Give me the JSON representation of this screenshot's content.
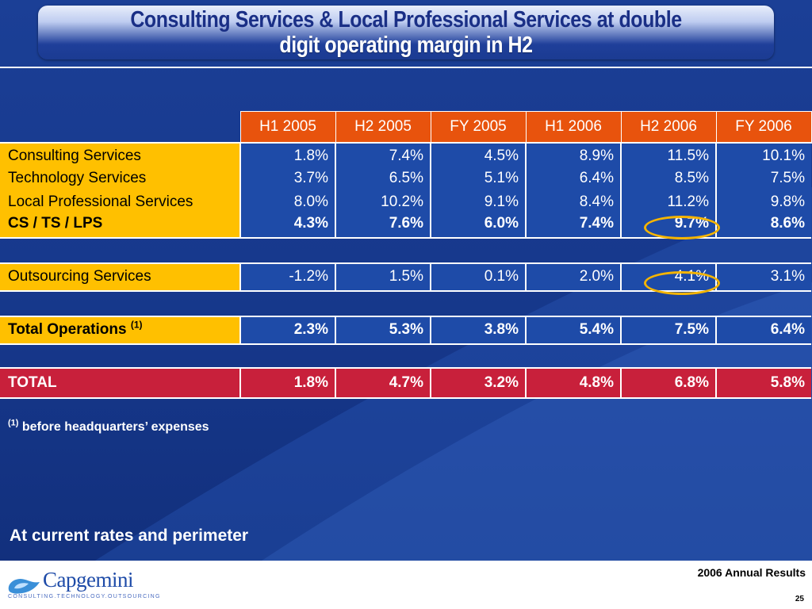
{
  "title": {
    "line1": "Consulting Services & Local Professional Services at double",
    "line2": "digit operating margin in H2"
  },
  "table": {
    "columns": [
      "H1 2005",
      "H2 2005",
      "FY 2005",
      "H1 2006",
      "H2 2006",
      "FY 2006"
    ],
    "blocks": [
      {
        "rows": [
          {
            "label": "Consulting Services",
            "values": [
              "1.8%",
              "7.4%",
              "4.5%",
              "8.9%",
              "11.5%",
              "10.1%"
            ]
          },
          {
            "label": "Technology Services",
            "values": [
              "3.7%",
              "6.5%",
              "5.1%",
              "6.4%",
              "8.5%",
              "7.5%"
            ]
          },
          {
            "label": "Local Professional Services",
            "values": [
              "8.0%",
              "10.2%",
              "9.1%",
              "8.4%",
              "11.2%",
              "9.8%"
            ]
          },
          {
            "label": "CS / TS / LPS",
            "values": [
              "4.3%",
              "7.6%",
              "6.0%",
              "7.4%",
              "9.7%",
              "8.6%"
            ]
          }
        ]
      },
      {
        "rows": [
          {
            "label": "Outsourcing Services",
            "values": [
              "-1.2%",
              "1.5%",
              "0.1%",
              "2.0%",
              "4.1%",
              "3.1%"
            ]
          }
        ]
      },
      {
        "rows": [
          {
            "label": "Total Operations",
            "footnote_mark": "(1)",
            "values": [
              "2.3%",
              "5.3%",
              "3.8%",
              "5.4%",
              "7.5%",
              "6.4%"
            ]
          }
        ]
      },
      {
        "rows": [
          {
            "label": "TOTAL",
            "values": [
              "1.8%",
              "4.7%",
              "3.2%",
              "4.8%",
              "6.8%",
              "5.8%"
            ]
          }
        ]
      }
    ]
  },
  "footnote": {
    "mark": "(1)",
    "text": "before headquarters’ expenses"
  },
  "rates_note": "At current rates and perimeter",
  "footer": {
    "logo_word": "Capgemini",
    "logo_tagline": "CONSULTING.TECHNOLOGY.OUTSOURCING",
    "report_name": "2006 Annual Results",
    "page_number": "25"
  },
  "colors": {
    "background": "#1b3f96",
    "header_orange": "#e8530d",
    "label_yellow": "#ffc000",
    "total_red": "#c8203b",
    "highlight_ring": "#f5b400"
  },
  "icons": {
    "logo": "capgemini-spade-logo",
    "highlight": "highlight-ring"
  }
}
